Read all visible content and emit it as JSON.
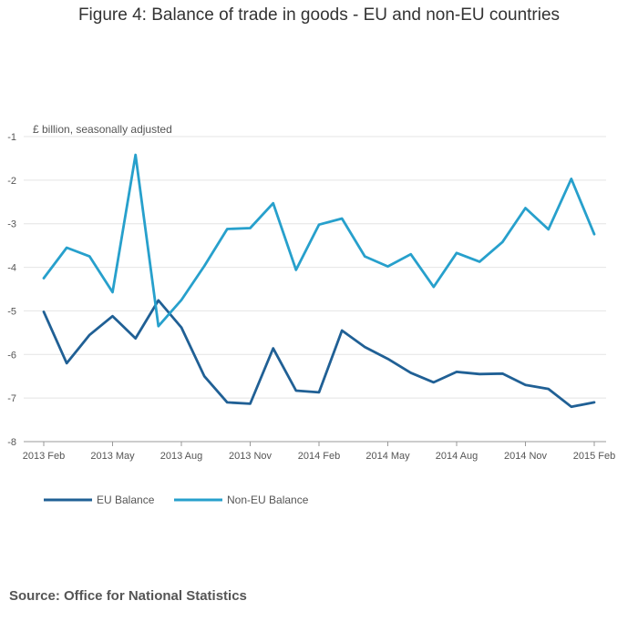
{
  "chart_data": {
    "type": "line",
    "title": "Figure 4: Balance of trade in goods - EU and non-EU countries",
    "ylabel": "£ billion, seasonally adjusted",
    "xlabel": "",
    "ylim": [
      -8,
      -1
    ],
    "yticks": [
      -1,
      -2,
      -3,
      -4,
      -5,
      -6,
      -7,
      -8
    ],
    "xtick_labels": [
      "2013 Feb",
      "2013 May",
      "2013 Aug",
      "2013 Nov",
      "2014 Feb",
      "2014 May",
      "2014 Aug",
      "2014 Nov",
      "2015 Feb"
    ],
    "x": [
      "2013 Feb",
      "2013 Mar",
      "2013 Apr",
      "2013 May",
      "2013 Jun",
      "2013 Jul",
      "2013 Aug",
      "2013 Sep",
      "2013 Oct",
      "2013 Nov",
      "2013 Dec",
      "2014 Jan",
      "2014 Feb",
      "2014 Mar",
      "2014 Apr",
      "2014 May",
      "2014 Jun",
      "2014 Jul",
      "2014 Aug",
      "2014 Sep",
      "2014 Oct",
      "2014 Nov",
      "2014 Dec",
      "2015 Jan",
      "2015 Feb"
    ],
    "series": [
      {
        "name": "EU Balance",
        "color": "#206095",
        "values": [
          -5.02,
          -6.2,
          -5.55,
          -5.12,
          -5.63,
          -4.76,
          -5.38,
          -6.5,
          -7.1,
          -7.13,
          -5.86,
          -6.83,
          -6.87,
          -5.45,
          -5.83,
          -6.1,
          -6.42,
          -6.64,
          -6.4,
          -6.45,
          -6.44,
          -6.7,
          -6.79,
          -7.2,
          -7.1
        ]
      },
      {
        "name": "Non-EU Balance",
        "color": "#27a0cc",
        "values": [
          -4.25,
          -3.55,
          -3.75,
          -4.57,
          -1.42,
          -5.35,
          -4.75,
          -3.97,
          -3.12,
          -3.1,
          -2.53,
          -4.06,
          -3.02,
          -2.88,
          -3.75,
          -3.98,
          -3.7,
          -4.45,
          -3.67,
          -3.87,
          -3.42,
          -2.64,
          -3.13,
          -1.97,
          -3.24
        ]
      }
    ],
    "legend_position": "bottom-left",
    "grid": true
  },
  "source": "Source: Office for National Statistics"
}
